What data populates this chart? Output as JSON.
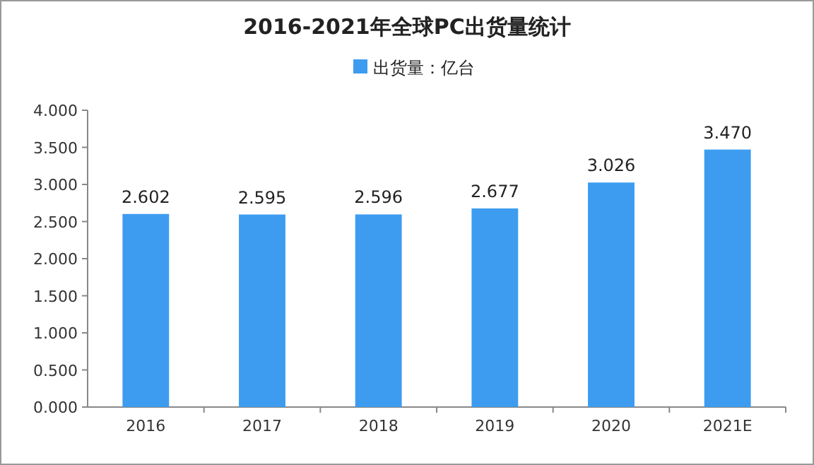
{
  "chart_data": {
    "type": "bar",
    "title": "2016-2021年全球PC出货量统计",
    "categories": [
      "2016",
      "2017",
      "2018",
      "2019",
      "2020",
      "2021E"
    ],
    "series": [
      {
        "name": "出货量：亿台",
        "color": "#3d9cf0",
        "values": [
          2.602,
          2.595,
          2.596,
          2.677,
          3.026,
          3.47
        ],
        "value_labels": [
          "2.602",
          "2.595",
          "2.596",
          "2.677",
          "3.026",
          "3.470"
        ]
      }
    ],
    "ylim": [
      0,
      4
    ],
    "yticks": [
      {
        "value": 0,
        "label": "0.000"
      },
      {
        "value": 0.5,
        "label": "0.500"
      },
      {
        "value": 1,
        "label": "1.000"
      },
      {
        "value": 1.5,
        "label": "1.500"
      },
      {
        "value": 2,
        "label": "2.000"
      },
      {
        "value": 2.5,
        "label": "2.500"
      },
      {
        "value": 3,
        "label": "3.000"
      },
      {
        "value": 3.5,
        "label": "3.500"
      },
      {
        "value": 4,
        "label": "4.000"
      }
    ],
    "legend": "top",
    "grid": false
  }
}
